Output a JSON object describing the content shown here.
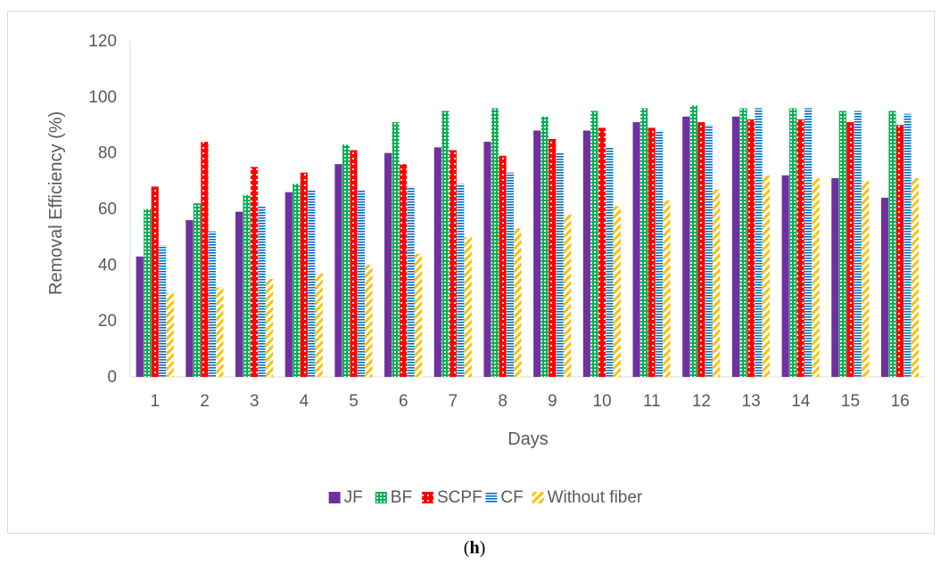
{
  "chart_data": {
    "type": "bar",
    "categories": [
      "1",
      "2",
      "3",
      "4",
      "5",
      "6",
      "7",
      "8",
      "9",
      "10",
      "11",
      "12",
      "13",
      "14",
      "15",
      "16"
    ],
    "series": [
      {
        "name": "JF",
        "color": "#7030a0",
        "pattern": "solid",
        "values": [
          43,
          56,
          59,
          66,
          76,
          80,
          82,
          84,
          88,
          88,
          91,
          93,
          93,
          72,
          71,
          64
        ]
      },
      {
        "name": "BF",
        "color": "#00b050",
        "pattern": "grid-dots",
        "values": [
          60,
          62,
          65,
          69,
          83,
          91,
          95,
          96,
          93,
          95,
          96,
          97,
          96,
          96,
          95,
          95
        ]
      },
      {
        "name": "SCPF",
        "color": "#ff0000",
        "pattern": "dots",
        "values": [
          68,
          84,
          75,
          73,
          81,
          76,
          81,
          79,
          85,
          89,
          89,
          91,
          92,
          92,
          91,
          90
        ]
      },
      {
        "name": "CF",
        "color": "#0070c0",
        "pattern": "horizontal-lines",
        "values": [
          47,
          52,
          61,
          67,
          67,
          68,
          69,
          73,
          80,
          82,
          88,
          90,
          96,
          96,
          95,
          94
        ]
      },
      {
        "name": "Without fiber",
        "color": "#ffc000",
        "pattern": "diagonal-stripes",
        "values": [
          30,
          32,
          35,
          37,
          40,
          44,
          50,
          53,
          58,
          61,
          63,
          67,
          72,
          71,
          70,
          71
        ]
      }
    ],
    "title": "",
    "xlabel": "Days",
    "ylabel": "Removal Efficiency (%)",
    "ylim": [
      0,
      120
    ],
    "yticks": [
      0,
      20,
      40,
      60,
      80,
      100,
      120
    ],
    "grid": false,
    "legend": "bottom"
  },
  "caption": {
    "open": "(",
    "letter": "h",
    "close": ")"
  }
}
